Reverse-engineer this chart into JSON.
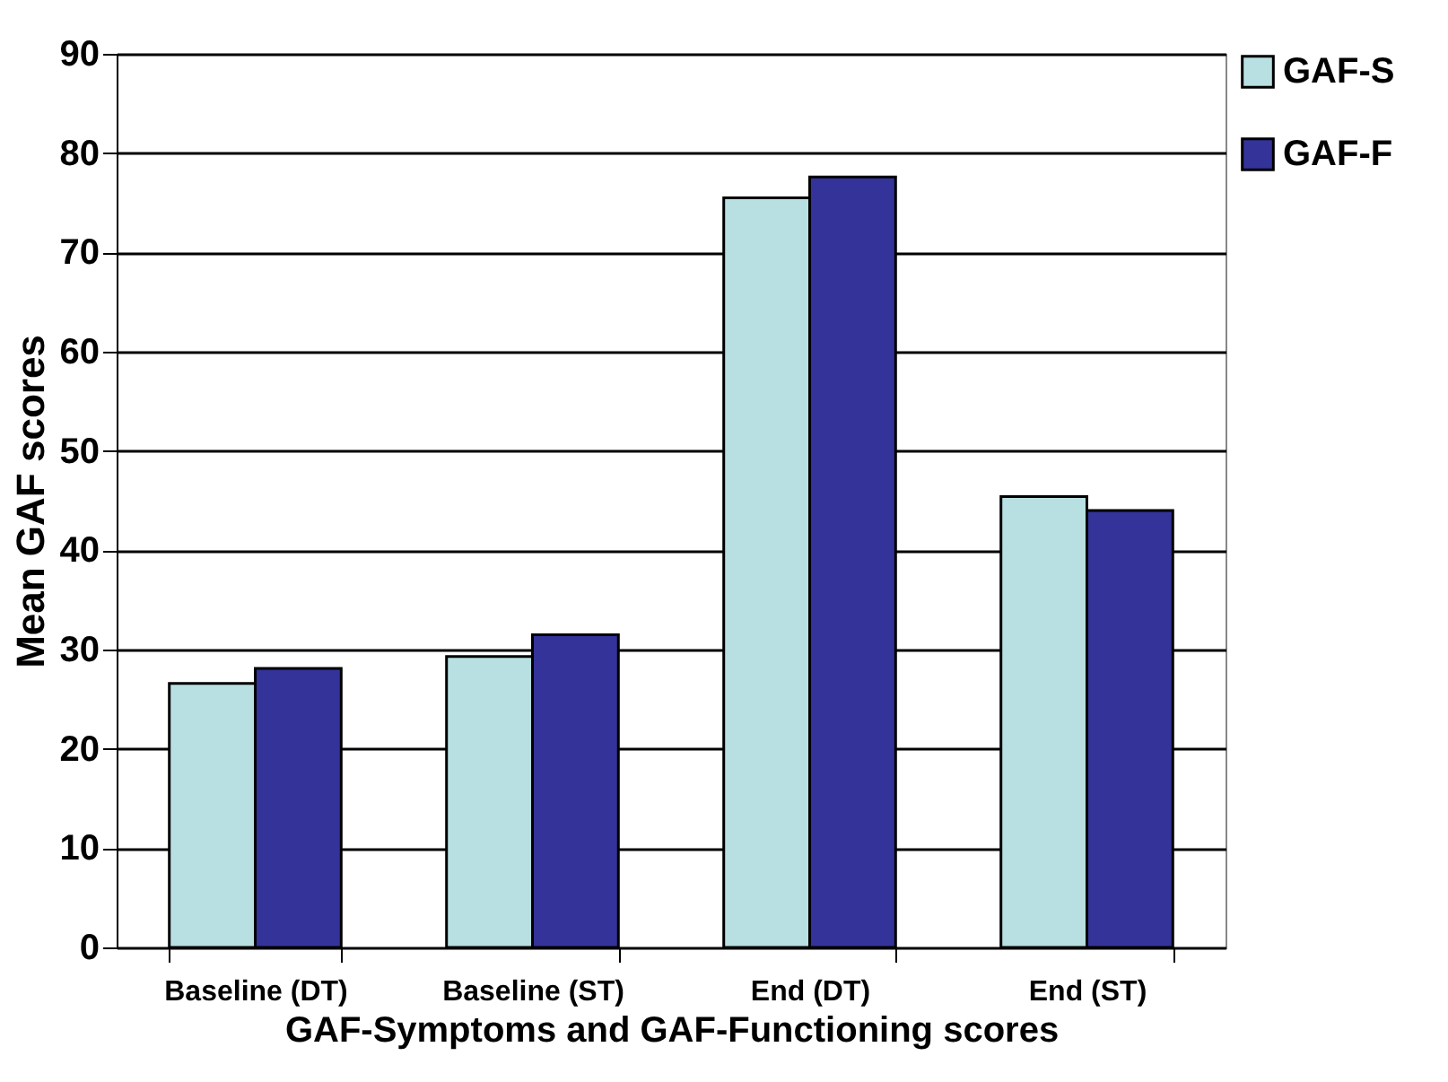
{
  "chart_data": {
    "type": "bar",
    "xlabel": "GAF-Symptoms and GAF-Functioning scores",
    "ylabel": "Mean GAF scores",
    "categories": [
      "Baseline (DT)",
      "Baseline (ST)",
      "End (DT)",
      "End (ST)"
    ],
    "series": [
      {
        "name": "GAF-S",
        "color": "#b8e0e2",
        "values": [
          26.6,
          29.3,
          75.5,
          45.4
        ]
      },
      {
        "name": "GAF-F",
        "color": "#333399",
        "values": [
          28.1,
          31.5,
          77.6,
          44.0
        ]
      }
    ],
    "ylim": [
      0,
      90
    ],
    "yticks": [
      0,
      10,
      20,
      30,
      40,
      50,
      60,
      70,
      80,
      90
    ],
    "grid": "y",
    "legend": "right"
  }
}
